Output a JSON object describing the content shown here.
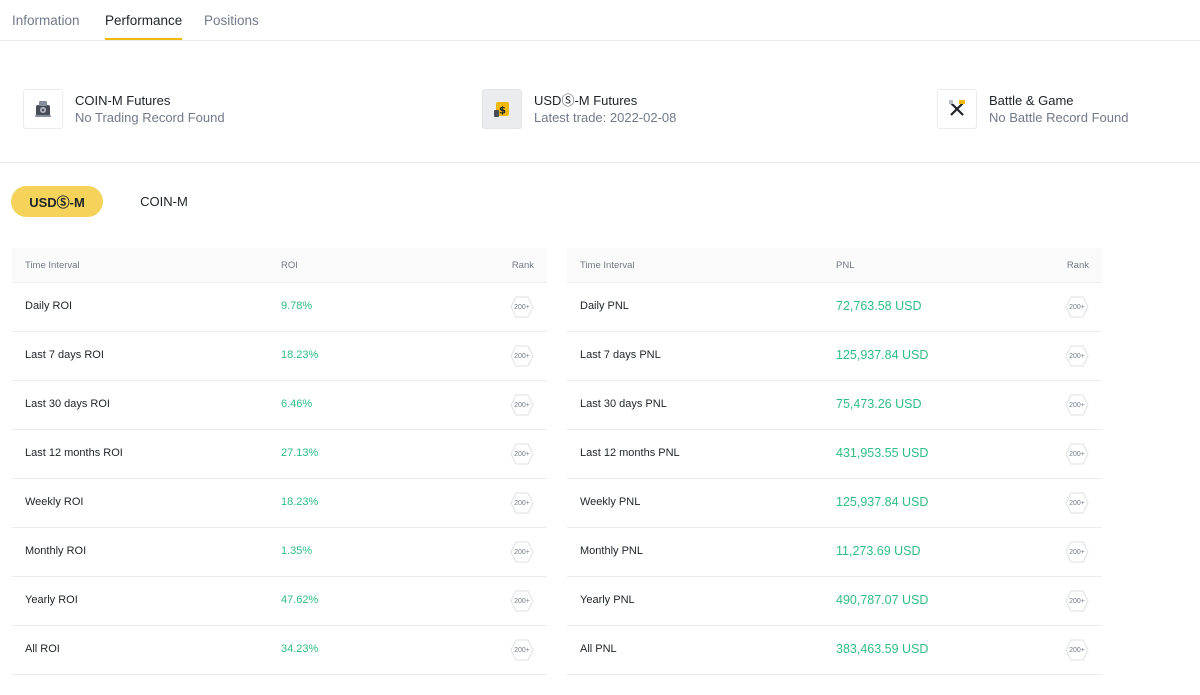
{
  "tabs": [
    {
      "label": "Information",
      "active": false
    },
    {
      "label": "Performance",
      "active": true
    },
    {
      "label": "Positions",
      "active": false
    }
  ],
  "summary": {
    "coin_m": {
      "title": "COIN-M Futures",
      "sub": "No Trading Record Found",
      "icon": "robot-icon"
    },
    "usds_m": {
      "title": "USDⓈ-M Futures",
      "sub": "Latest trade: 2022-02-08",
      "icon": "dollar-coin-icon"
    },
    "battle": {
      "title": "Battle & Game",
      "sub": "No Battle Record Found",
      "icon": "crossed-swords-icon"
    }
  },
  "segments": {
    "active": "USDⓈ-M",
    "inactive": "COIN-M"
  },
  "roi_table": {
    "headers": {
      "interval": "Time Interval",
      "value": "ROI",
      "rank": "Rank"
    },
    "rows": [
      {
        "label": "Daily ROI",
        "value": "9.78%",
        "rank": "200+"
      },
      {
        "label": "Last 7 days ROI",
        "value": "18.23%",
        "rank": "200+"
      },
      {
        "label": "Last 30 days ROI",
        "value": "6.46%",
        "rank": "200+"
      },
      {
        "label": "Last 12 months ROI",
        "value": "27.13%",
        "rank": "200+"
      },
      {
        "label": "Weekly ROI",
        "value": "18.23%",
        "rank": "200+"
      },
      {
        "label": "Monthly ROI",
        "value": "1.35%",
        "rank": "200+"
      },
      {
        "label": "Yearly ROI",
        "value": "47.62%",
        "rank": "200+"
      },
      {
        "label": "All ROI",
        "value": "34.23%",
        "rank": "200+"
      }
    ]
  },
  "pnl_table": {
    "headers": {
      "interval": "Time Interval",
      "value": "PNL",
      "rank": "Rank"
    },
    "rows": [
      {
        "label": "Daily PNL",
        "value": "72,763.58 USD",
        "rank": "200+"
      },
      {
        "label": "Last 7 days PNL",
        "value": "125,937.84 USD",
        "rank": "200+"
      },
      {
        "label": "Last 30 days PNL",
        "value": "75,473.26 USD",
        "rank": "200+"
      },
      {
        "label": "Last 12 months PNL",
        "value": "431,953.55 USD",
        "rank": "200+"
      },
      {
        "label": "Weekly PNL",
        "value": "125,937.84 USD",
        "rank": "200+"
      },
      {
        "label": "Monthly PNL",
        "value": "11,273.69 USD",
        "rank": "200+"
      },
      {
        "label": "Yearly PNL",
        "value": "490,787.07 USD",
        "rank": "200+"
      },
      {
        "label": "All PNL",
        "value": "383,463.59 USD",
        "rank": "200+"
      }
    ]
  },
  "colors": {
    "accent": "#f0b90b",
    "positive": "#2ebd85",
    "segment_bg": "#f5d35a"
  }
}
